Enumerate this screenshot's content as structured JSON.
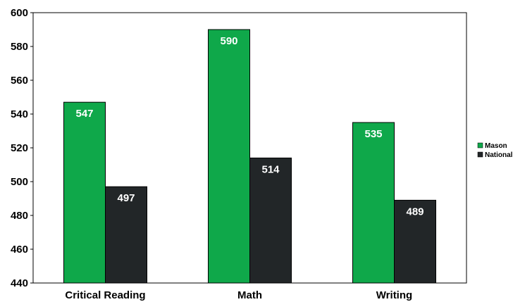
{
  "chart_data": {
    "type": "bar",
    "categories": [
      "Critical Reading",
      "Math",
      "Writing"
    ],
    "series": [
      {
        "name": "Mason",
        "values": [
          547,
          590,
          535
        ],
        "color": "#0fa84a"
      },
      {
        "name": "National",
        "values": [
          497,
          514,
          489
        ],
        "color": "#222628"
      }
    ],
    "ylim": [
      440,
      600
    ],
    "yticks": [
      440,
      460,
      480,
      500,
      520,
      540,
      560,
      580,
      600
    ],
    "title": "",
    "xlabel": "",
    "ylabel": "",
    "grid": false,
    "legend_position": "right"
  }
}
